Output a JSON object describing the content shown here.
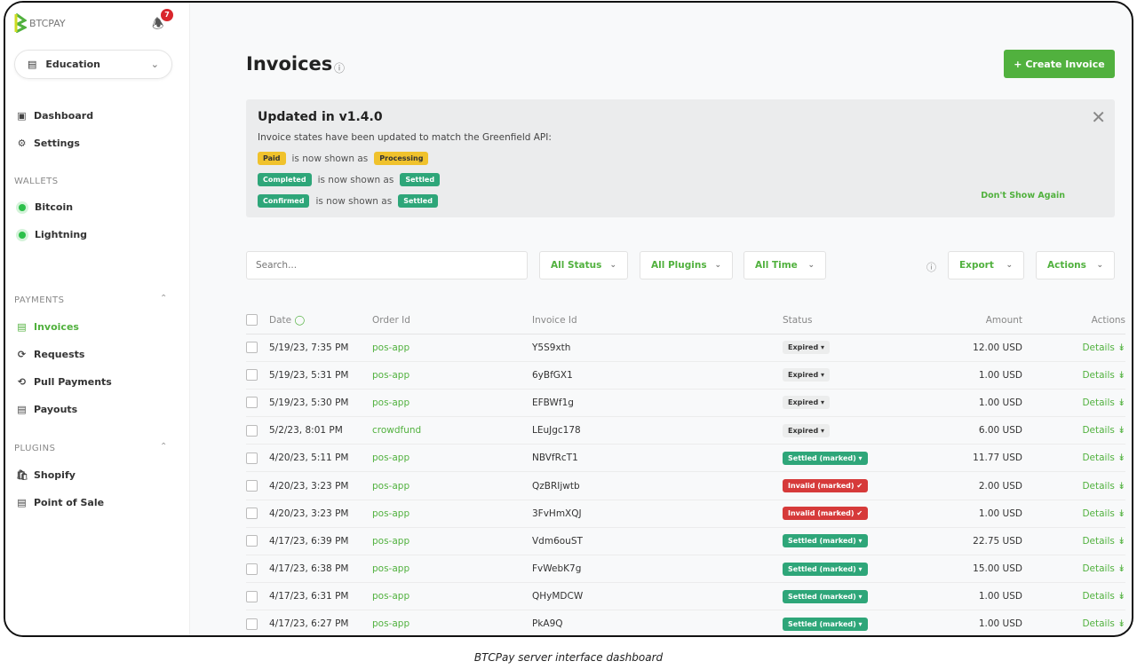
{
  "brand": "BTCPAY",
  "notifications": {
    "count": "7"
  },
  "store": {
    "name": "Education"
  },
  "sidebar": {
    "top": [
      {
        "label": "Dashboard",
        "icon": "dashboard-icon"
      },
      {
        "label": "Settings",
        "icon": "gear-icon"
      }
    ],
    "wallets_title": "WALLETS",
    "wallets": [
      {
        "label": "Bitcoin"
      },
      {
        "label": "Lightning"
      }
    ],
    "payments_title": "PAYMENTS",
    "payments": [
      {
        "label": "Invoices",
        "active": true
      },
      {
        "label": "Requests"
      },
      {
        "label": "Pull Payments"
      },
      {
        "label": "Payouts"
      }
    ],
    "plugins_title": "PLUGINS",
    "plugins": [
      {
        "label": "Shopify"
      },
      {
        "label": "Point of Sale"
      }
    ]
  },
  "page": {
    "title": "Invoices",
    "create_label": "+ Create Invoice"
  },
  "notice": {
    "title": "Updated in v1.4.0",
    "desc": "Invoice states have been updated to match the Greenfield API:",
    "rows": [
      {
        "from": "Paid",
        "to": "Processing",
        "text": "is now shown as"
      },
      {
        "from": "Completed",
        "to": "Settled",
        "text": "is now shown as"
      },
      {
        "from": "Confirmed",
        "to": "Settled",
        "text": "is now shown as"
      }
    ],
    "dismiss": "Don't Show Again"
  },
  "filters": {
    "search_placeholder": "Search...",
    "status": "All Status",
    "plugins": "All Plugins",
    "time": "All Time",
    "export": "Export",
    "actions": "Actions"
  },
  "table": {
    "headers": [
      "Date",
      "Order Id",
      "Invoice Id",
      "Status",
      "Amount",
      "Actions"
    ],
    "rows": [
      [
        "5/19/23, 7:35 PM",
        "pos-app",
        "Y5S9xth",
        "Expired",
        "12.00 USD"
      ],
      [
        "5/19/23, 5:31 PM",
        "pos-app",
        "6yBfGX1",
        "Expired",
        "1.00 USD"
      ],
      [
        "5/19/23, 5:30 PM",
        "pos-app",
        "EFBWf1g",
        "Expired",
        "1.00 USD"
      ],
      [
        "5/2/23, 8:01 PM",
        "crowdfund",
        "LEuJgc178",
        "Expired",
        "6.00 USD"
      ],
      [
        "4/20/23, 5:11 PM",
        "pos-app",
        "NBVfRcT1",
        "Settled (marked)",
        "11.77 USD"
      ],
      [
        "4/20/23, 3:23 PM",
        "pos-app",
        "QzBRIjwtb",
        "Invalid (marked)",
        "2.00 USD"
      ],
      [
        "4/20/23, 3:23 PM",
        "pos-app",
        "3FvHmXQJ",
        "Invalid (marked)",
        "1.00 USD"
      ],
      [
        "4/17/23, 6:39 PM",
        "pos-app",
        "Vdm6ouST",
        "Settled (marked)",
        "22.75 USD"
      ],
      [
        "4/17/23, 6:38 PM",
        "pos-app",
        "FvWebK7g",
        "Settled (marked)",
        "15.00 USD"
      ],
      [
        "4/17/23, 6:31 PM",
        "pos-app",
        "QHyMDCW",
        "Settled (marked)",
        "1.00 USD"
      ],
      [
        "4/17/23, 6:27 PM",
        "pos-app",
        "PkA9Q",
        "Settled (marked)",
        "1.00 USD"
      ]
    ],
    "details_label": "Details"
  },
  "colors": {
    "accent": "#51b13e",
    "settled": "#2ea679",
    "invalid": "#d63a3a",
    "processing": "#f0c22c"
  },
  "caption": "BTCPay server interface dashboard"
}
